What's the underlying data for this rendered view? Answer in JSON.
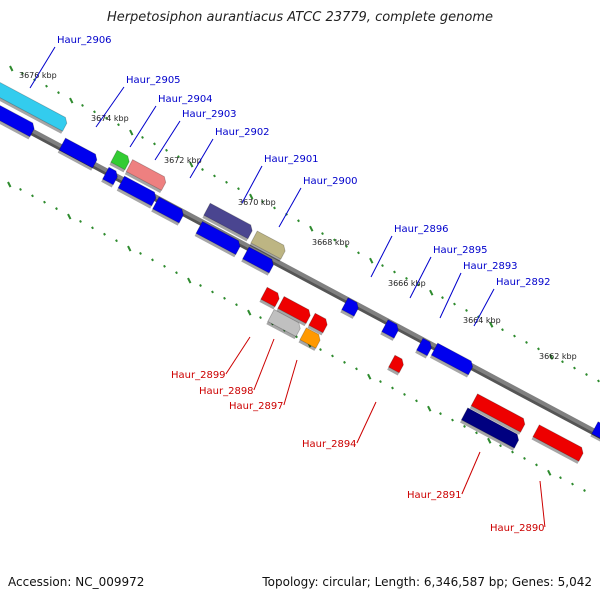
{
  "title": "Herpetosiphon aurantiacus ATCC 23779, complete genome",
  "footer": {
    "accession": "Accession: NC_009972",
    "topology": "Topology: circular; Length: 6,346,587 bp; Genes: 5,042"
  },
  "kbp_labels": [
    "3676 kbp",
    "3674 kbp",
    "3672 kbp",
    "3670 kbp",
    "3668 kbp",
    "3666 kbp",
    "3664 kbp",
    "3662 kbp"
  ],
  "forward_genes": [
    "Haur_2906",
    "Haur_2905",
    "Haur_2904",
    "Haur_2903",
    "Haur_2902",
    "Haur_2901",
    "Haur_2900",
    "Haur_2896",
    "Haur_2895",
    "Haur_2893",
    "Haur_2892"
  ],
  "reverse_genes": [
    "Haur_2899",
    "Haur_2898",
    "Haur_2897",
    "Haur_2894",
    "Haur_2891",
    "Haur_2890"
  ],
  "colors": {
    "backbone": "#808080",
    "forward_label": "#0000cc",
    "reverse_label": "#cc0000",
    "tick": "#2e8b2e",
    "cyan": "#33ccee",
    "blue": "#0000ee",
    "green": "#33cc33",
    "salmon": "#ee8080",
    "slate": "#4a4590",
    "khaki": "#bdb583",
    "red": "#ee0000",
    "silver": "#c0c0c0",
    "orange": "#ff9900",
    "navy": "#000080"
  }
}
